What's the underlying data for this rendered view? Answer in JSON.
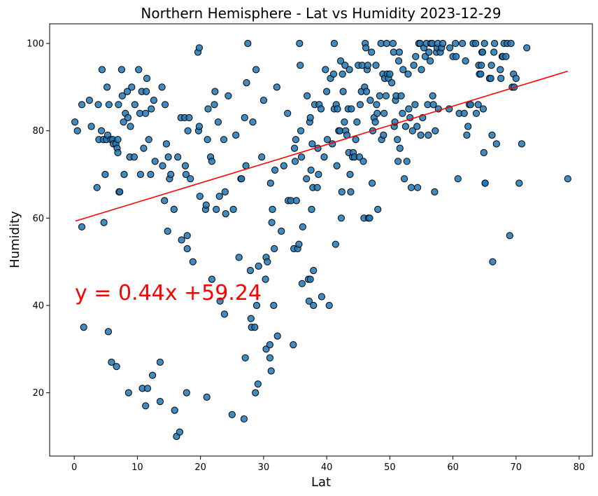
{
  "chart_data": {
    "type": "scatter",
    "title": "Northern Hemisphere - Lat vs Humidity 2023-12-29",
    "xlabel": "Lat",
    "ylabel": "Humidity",
    "xlim": [
      -3.9,
      82.1
    ],
    "ylim": [
      5.5,
      104.5
    ],
    "xticks": [
      0,
      10,
      20,
      30,
      40,
      50,
      60,
      70,
      80
    ],
    "yticks": [
      20,
      40,
      60,
      80,
      100
    ],
    "grid": false,
    "marker_color": "#1f77b4",
    "marker_edge": "#000000",
    "regression": {
      "slope": 0.44,
      "intercept": 59.24,
      "x_start": 0.2,
      "x_end": 78.2,
      "color": "#ff0000",
      "equation": "y = 0.44x +59.24"
    },
    "points": [
      [
        0.1,
        82
      ],
      [
        0.5,
        80
      ],
      [
        1.2,
        86
      ],
      [
        1.2,
        58
      ],
      [
        1.5,
        35
      ],
      [
        2.4,
        87
      ],
      [
        2.7,
        81
      ],
      [
        3.6,
        67
      ],
      [
        3.8,
        86
      ],
      [
        3.9,
        78
      ],
      [
        4.3,
        80
      ],
      [
        4.4,
        94
      ],
      [
        4.6,
        78
      ],
      [
        4.7,
        59
      ],
      [
        4.9,
        70
      ],
      [
        5.1,
        78
      ],
      [
        5.2,
        90
      ],
      [
        5.3,
        79
      ],
      [
        5.4,
        34
      ],
      [
        5.5,
        86
      ],
      [
        5.8,
        78
      ],
      [
        5.9,
        27
      ],
      [
        6.1,
        78
      ],
      [
        6.2,
        77
      ],
      [
        6.6,
        77
      ],
      [
        6.7,
        26
      ],
      [
        6.8,
        76
      ],
      [
        6.9,
        75
      ],
      [
        6.9,
        78
      ],
      [
        7.0,
        86
      ],
      [
        7.1,
        66
      ],
      [
        7.2,
        66
      ],
      [
        7.5,
        94
      ],
      [
        7.6,
        88
      ],
      [
        7.8,
        82
      ],
      [
        7.9,
        70
      ],
      [
        8.1,
        84
      ],
      [
        8.4,
        89
      ],
      [
        8.5,
        83
      ],
      [
        8.6,
        20
      ],
      [
        8.8,
        74
      ],
      [
        8.9,
        81
      ],
      [
        9.1,
        90
      ],
      [
        9.5,
        74
      ],
      [
        9.6,
        86
      ],
      [
        10.2,
        94
      ],
      [
        10.4,
        84
      ],
      [
        10.5,
        70
      ],
      [
        10.7,
        89
      ],
      [
        10.8,
        21
      ],
      [
        11.0,
        76
      ],
      [
        11.3,
        84
      ],
      [
        11.3,
        17
      ],
      [
        11.4,
        89
      ],
      [
        11.5,
        92
      ],
      [
        11.6,
        21
      ],
      [
        11.8,
        78
      ],
      [
        12.1,
        70
      ],
      [
        12.2,
        85
      ],
      [
        12.4,
        24
      ],
      [
        12.6,
        87
      ],
      [
        12.8,
        73
      ],
      [
        13.6,
        18
      ],
      [
        13.6,
        27
      ],
      [
        13.9,
        90
      ],
      [
        14.0,
        72
      ],
      [
        14.3,
        64
      ],
      [
        14.4,
        86
      ],
      [
        14.6,
        77
      ],
      [
        14.8,
        57
      ],
      [
        14.9,
        74
      ],
      [
        15.1,
        69
      ],
      [
        15.3,
        70
      ],
      [
        15.8,
        62
      ],
      [
        15.9,
        16
      ],
      [
        16.2,
        10
      ],
      [
        16.4,
        74
      ],
      [
        16.7,
        11
      ],
      [
        16.9,
        83
      ],
      [
        17.0,
        55
      ],
      [
        17.5,
        83
      ],
      [
        17.6,
        72
      ],
      [
        17.7,
        70
      ],
      [
        17.8,
        20
      ],
      [
        17.9,
        53
      ],
      [
        17.9,
        56
      ],
      [
        18.0,
        80
      ],
      [
        18.2,
        83
      ],
      [
        18.4,
        69
      ],
      [
        18.8,
        50
      ],
      [
        19.6,
        98
      ],
      [
        19.8,
        99
      ],
      [
        19.7,
        80
      ],
      [
        19.8,
        81
      ],
      [
        19.9,
        65
      ],
      [
        20.8,
        62
      ],
      [
        20.9,
        63
      ],
      [
        21.0,
        19
      ],
      [
        21.1,
        78
      ],
      [
        21.2,
        85
      ],
      [
        21.6,
        74
      ],
      [
        21.8,
        73
      ],
      [
        21.8,
        46
      ],
      [
        22.2,
        86
      ],
      [
        22.3,
        89
      ],
      [
        22.5,
        62
      ],
      [
        22.8,
        82
      ],
      [
        23.0,
        65
      ],
      [
        23.1,
        41
      ],
      [
        23.7,
        78
      ],
      [
        23.8,
        38
      ],
      [
        23.9,
        66
      ],
      [
        24.0,
        61
      ],
      [
        24.4,
        88
      ],
      [
        25.0,
        15
      ],
      [
        25.2,
        62
      ],
      [
        25.6,
        79
      ],
      [
        26.1,
        51
      ],
      [
        26.4,
        69
      ],
      [
        26.5,
        69
      ],
      [
        26.9,
        14
      ],
      [
        27.0,
        83
      ],
      [
        27.1,
        28
      ],
      [
        27.2,
        72
      ],
      [
        27.3,
        91
      ],
      [
        27.5,
        100
      ],
      [
        27.9,
        48
      ],
      [
        28.0,
        37
      ],
      [
        28.1,
        35
      ],
      [
        28.3,
        82
      ],
      [
        28.6,
        35
      ],
      [
        28.7,
        20
      ],
      [
        28.8,
        94
      ],
      [
        28.9,
        40
      ],
      [
        29.1,
        22
      ],
      [
        29.2,
        49
      ],
      [
        29.7,
        74
      ],
      [
        30.0,
        87
      ],
      [
        30.3,
        46
      ],
      [
        30.4,
        51
      ],
      [
        30.4,
        30
      ],
      [
        30.6,
        50
      ],
      [
        31.0,
        31
      ],
      [
        31.0,
        28
      ],
      [
        31.1,
        68
      ],
      [
        31.2,
        25
      ],
      [
        31.3,
        59
      ],
      [
        31.4,
        62
      ],
      [
        31.6,
        40
      ],
      [
        31.7,
        53
      ],
      [
        31.8,
        71
      ],
      [
        32.1,
        90
      ],
      [
        32.2,
        33
      ],
      [
        32.8,
        57
      ],
      [
        33.2,
        72
      ],
      [
        33.8,
        84
      ],
      [
        33.9,
        64
      ],
      [
        34.3,
        64
      ],
      [
        34.7,
        31
      ],
      [
        34.8,
        53
      ],
      [
        34.9,
        76
      ],
      [
        35.0,
        73
      ],
      [
        35.1,
        78
      ],
      [
        35.2,
        64
      ],
      [
        35.4,
        53
      ],
      [
        35.6,
        54
      ],
      [
        35.7,
        100
      ],
      [
        35.8,
        95
      ],
      [
        35.9,
        80
      ],
      [
        36.0,
        74
      ],
      [
        36.1,
        45
      ],
      [
        36.2,
        58
      ],
      [
        36.8,
        69
      ],
      [
        36.9,
        88
      ],
      [
        37.1,
        46
      ],
      [
        37.2,
        41
      ],
      [
        37.3,
        82
      ],
      [
        37.4,
        46
      ],
      [
        37.4,
        83
      ],
      [
        37.5,
        71
      ],
      [
        37.6,
        62
      ],
      [
        37.7,
        77
      ],
      [
        37.8,
        67
      ],
      [
        37.9,
        48
      ],
      [
        37.9,
        40
      ],
      [
        38.1,
        86
      ],
      [
        38.5,
        67
      ],
      [
        38.6,
        76
      ],
      [
        38.7,
        70
      ],
      [
        38.8,
        86
      ],
      [
        39.1,
        85
      ],
      [
        39.2,
        42
      ],
      [
        39.6,
        74
      ],
      [
        39.8,
        94
      ],
      [
        40.0,
        89
      ],
      [
        40.1,
        78
      ],
      [
        40.4,
        40
      ],
      [
        40.6,
        92
      ],
      [
        40.9,
        77
      ],
      [
        41.1,
        93
      ],
      [
        41.2,
        100
      ],
      [
        41.2,
        85
      ],
      [
        41.4,
        54
      ],
      [
        41.5,
        86
      ],
      [
        41.6,
        72
      ],
      [
        41.7,
        85
      ],
      [
        41.9,
        80
      ],
      [
        42.1,
        80
      ],
      [
        42.2,
        96
      ],
      [
        42.3,
        60
      ],
      [
        42.4,
        66
      ],
      [
        42.5,
        93
      ],
      [
        42.6,
        89
      ],
      [
        42.8,
        82
      ],
      [
        42.9,
        95
      ],
      [
        43.0,
        80
      ],
      [
        43.2,
        79
      ],
      [
        43.4,
        85
      ],
      [
        43.5,
        75
      ],
      [
        43.6,
        94
      ],
      [
        43.7,
        70
      ],
      [
        43.8,
        66
      ],
      [
        43.9,
        85
      ],
      [
        44.1,
        74
      ],
      [
        44.2,
        75
      ],
      [
        44.4,
        74
      ],
      [
        44.6,
        78
      ],
      [
        44.8,
        82
      ],
      [
        45.0,
        95
      ],
      [
        45.2,
        74
      ],
      [
        45.3,
        86
      ],
      [
        45.5,
        89
      ],
      [
        45.6,
        95
      ],
      [
        45.8,
        73
      ],
      [
        45.9,
        60
      ],
      [
        46.0,
        90
      ],
      [
        46.1,
        100
      ],
      [
        46.2,
        99
      ],
      [
        46.3,
        89
      ],
      [
        46.4,
        94
      ],
      [
        46.5,
        95
      ],
      [
        46.6,
        60
      ],
      [
        46.8,
        60
      ],
      [
        46.9,
        87
      ],
      [
        47.1,
        98
      ],
      [
        47.2,
        68
      ],
      [
        47.3,
        80
      ],
      [
        47.5,
        83
      ],
      [
        47.7,
        82
      ],
      [
        47.8,
        95
      ],
      [
        47.9,
        86
      ],
      [
        48.0,
        84
      ],
      [
        48.1,
        62
      ],
      [
        48.4,
        88
      ],
      [
        48.6,
        100
      ],
      [
        48.7,
        78
      ],
      [
        48.9,
        93
      ],
      [
        49.0,
        79
      ],
      [
        49.1,
        84
      ],
      [
        49.2,
        92
      ],
      [
        49.4,
        88
      ],
      [
        49.5,
        100
      ],
      [
        49.6,
        93
      ],
      [
        49.8,
        92
      ],
      [
        50.0,
        93
      ],
      [
        50.3,
        91
      ],
      [
        50.5,
        100
      ],
      [
        50.6,
        98
      ],
      [
        50.7,
        81
      ],
      [
        50.8,
        82
      ],
      [
        50.9,
        87
      ],
      [
        51.0,
        88
      ],
      [
        51.2,
        78
      ],
      [
        51.3,
        73
      ],
      [
        51.4,
        96
      ],
      [
        51.5,
        98
      ],
      [
        51.6,
        76
      ],
      [
        51.8,
        88
      ],
      [
        52.0,
        84
      ],
      [
        52.1,
        94
      ],
      [
        52.3,
        69
      ],
      [
        52.5,
        81
      ],
      [
        52.7,
        73
      ],
      [
        52.9,
        93
      ],
      [
        53.0,
        85
      ],
      [
        53.2,
        83
      ],
      [
        53.4,
        67
      ],
      [
        53.6,
        80
      ],
      [
        53.8,
        95
      ],
      [
        54.0,
        86
      ],
      [
        54.1,
        97
      ],
      [
        54.3,
        81
      ],
      [
        54.4,
        67
      ],
      [
        54.6,
        100
      ],
      [
        54.8,
        100
      ],
      [
        54.9,
        79
      ],
      [
        55.0,
        94
      ],
      [
        55.2,
        83
      ],
      [
        55.4,
        99
      ],
      [
        55.6,
        97
      ],
      [
        55.8,
        100
      ],
      [
        56.0,
        86
      ],
      [
        56.1,
        79
      ],
      [
        56.2,
        98
      ],
      [
        56.4,
        96
      ],
      [
        56.5,
        100
      ],
      [
        56.7,
        100
      ],
      [
        56.8,
        88
      ],
      [
        56.9,
        86
      ],
      [
        57.1,
        66
      ],
      [
        57.2,
        80
      ],
      [
        57.4,
        98
      ],
      [
        57.5,
        99
      ],
      [
        57.6,
        100
      ],
      [
        57.7,
        85
      ],
      [
        58.0,
        98
      ],
      [
        58.2,
        99
      ],
      [
        58.4,
        100
      ],
      [
        59.4,
        85
      ],
      [
        59.5,
        99
      ],
      [
        60.0,
        97
      ],
      [
        60.4,
        100
      ],
      [
        60.5,
        97
      ],
      [
        60.8,
        69
      ],
      [
        61.0,
        84
      ],
      [
        61.5,
        100
      ],
      [
        61.8,
        84
      ],
      [
        62.0,
        96
      ],
      [
        62.2,
        79
      ],
      [
        62.4,
        81
      ],
      [
        62.6,
        86
      ],
      [
        62.8,
        86
      ],
      [
        63.2,
        100
      ],
      [
        63.6,
        100
      ],
      [
        63.7,
        84
      ],
      [
        64.0,
        86
      ],
      [
        64.1,
        95
      ],
      [
        64.2,
        93
      ],
      [
        64.4,
        93
      ],
      [
        64.5,
        95
      ],
      [
        64.6,
        98
      ],
      [
        64.7,
        98
      ],
      [
        64.8,
        85
      ],
      [
        64.9,
        75
      ],
      [
        65.0,
        100
      ],
      [
        65.1,
        68
      ],
      [
        65.1,
        68
      ],
      [
        65.8,
        92
      ],
      [
        66.0,
        92
      ],
      [
        66.1,
        95
      ],
      [
        66.2,
        79
      ],
      [
        66.3,
        50
      ],
      [
        66.5,
        98
      ],
      [
        66.6,
        100
      ],
      [
        66.9,
        77
      ],
      [
        67.5,
        94
      ],
      [
        67.6,
        92
      ],
      [
        67.8,
        97
      ],
      [
        67.9,
        97
      ],
      [
        68.1,
        100
      ],
      [
        68.4,
        97
      ],
      [
        68.6,
        100
      ],
      [
        69.0,
        56
      ],
      [
        69.2,
        100
      ],
      [
        69.4,
        90
      ],
      [
        69.6,
        93
      ],
      [
        69.7,
        90
      ],
      [
        70.0,
        92
      ],
      [
        70.5,
        68
      ],
      [
        70.9,
        77
      ],
      [
        71.7,
        99
      ],
      [
        78.2,
        69
      ]
    ]
  }
}
